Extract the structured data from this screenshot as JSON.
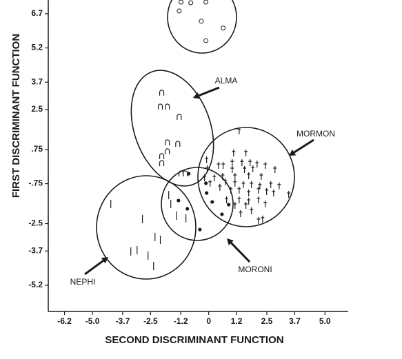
{
  "chart_data": {
    "type": "scatter",
    "xlabel": "SECOND DISCRIMINANT FUNCTION",
    "ylabel": "FIRST DISCRIMINANT FUNCTION",
    "xlim": [
      -6.9,
      6.0
    ],
    "ylim": [
      -6.35,
      7.3
    ],
    "xticks": [
      -6.2,
      {
        "value": -5.0,
        "label": "-5.0"
      },
      -3.7,
      -2.5,
      -1.2,
      0,
      1.2,
      2.5,
      3.7,
      {
        "value": 5.0,
        "label": "5.0"
      }
    ],
    "yticks": [
      6.7,
      5.2,
      3.7,
      2.5,
      {
        "value": 0.75,
        "label": ".75"
      },
      {
        "value": -0.75,
        "label": "-.75"
      },
      -2.5,
      -3.7,
      -5.2
    ],
    "color": "#1a1a1a",
    "series": [
      {
        "marker": "circle",
        "x": [
          -1.19,
          -0.77,
          -0.12,
          -1.27,
          -0.32,
          0.62,
          -0.12
        ],
        "y": [
          7.21,
          7.18,
          7.21,
          6.82,
          6.37,
          6.07,
          5.52
        ]
      },
      {
        "name": "ALMA",
        "marker": "arch",
        "x": [
          -2.02,
          -2.08,
          -1.78,
          -1.27,
          -1.78,
          -1.33,
          -1.78,
          -2.02,
          -2.02,
          -1.19,
          -1.01
        ],
        "y": [
          3.23,
          2.62,
          2.62,
          2.17,
          1.05,
          0.99,
          0.66,
          0.45,
          0.14,
          -0.31,
          -0.31
        ]
      },
      {
        "name": "MORMON",
        "marker": "dagger",
        "x": [
          1.31,
          1.07,
          1.6,
          -0.09,
          0.42,
          0.62,
          1.01,
          1.43,
          1.78,
          2.08,
          2.43,
          -0.06,
          1.01,
          1.54,
          1.9,
          -0.18,
          0.24,
          0.6,
          1.13,
          1.72,
          2.26,
          2.85,
          0.71,
          1.13,
          1.49,
          1.84,
          2.2,
          2.67,
          3.03,
          3.44,
          0.48,
          0.95,
          1.31,
          1.72,
          2.14,
          2.49,
          2.79,
          0.06,
          1.31,
          1.72,
          2.14,
          2.43,
          0.77,
          1.13,
          1.6,
          1.84,
          1.37,
          2.14,
          2.32
        ],
        "y": [
          1.56,
          0.6,
          0.6,
          0.3,
          0.05,
          0.05,
          0.17,
          0.17,
          0.17,
          0.11,
          0.05,
          -0.1,
          -0.13,
          -0.13,
          -0.1,
          -0.49,
          -0.49,
          -0.43,
          -0.43,
          -0.4,
          -0.43,
          -0.13,
          -0.67,
          -0.73,
          -0.79,
          -0.79,
          -0.85,
          -0.79,
          -0.85,
          -1.22,
          -0.91,
          -1.03,
          -1.03,
          -1.16,
          -1.03,
          -1.09,
          -1.16,
          -0.73,
          -1.46,
          -1.52,
          -1.46,
          -1.64,
          -1.46,
          -1.7,
          -1.7,
          -1.94,
          -2.06,
          -2.36,
          -2.3
        ]
      },
      {
        "name": "MORONI",
        "marker": "dot",
        "x": [
          -0.86,
          -0.12,
          -0.09,
          -1.3,
          -0.92,
          0.15,
          0.86,
          0.57,
          -0.38
        ],
        "y": [
          -0.31,
          -0.73,
          -1.16,
          -1.49,
          -1.85,
          -1.55,
          -1.67,
          -2.09,
          -2.76
        ]
      },
      {
        "name": "NEPHI",
        "marker": "bar",
        "x": [
          -4.21,
          -2.85,
          -2.31,
          -2.08,
          -3.35,
          -3.08,
          -2.61,
          -2.37,
          -1.72,
          -1.63,
          -1.39,
          -0.98
        ],
        "y": [
          -1.64,
          -2.3,
          -3.09,
          -3.21,
          -3.72,
          -3.66,
          -3.9,
          -4.36,
          -1.25,
          -1.64,
          -2.15,
          -2.27
        ]
      }
    ]
  }
}
